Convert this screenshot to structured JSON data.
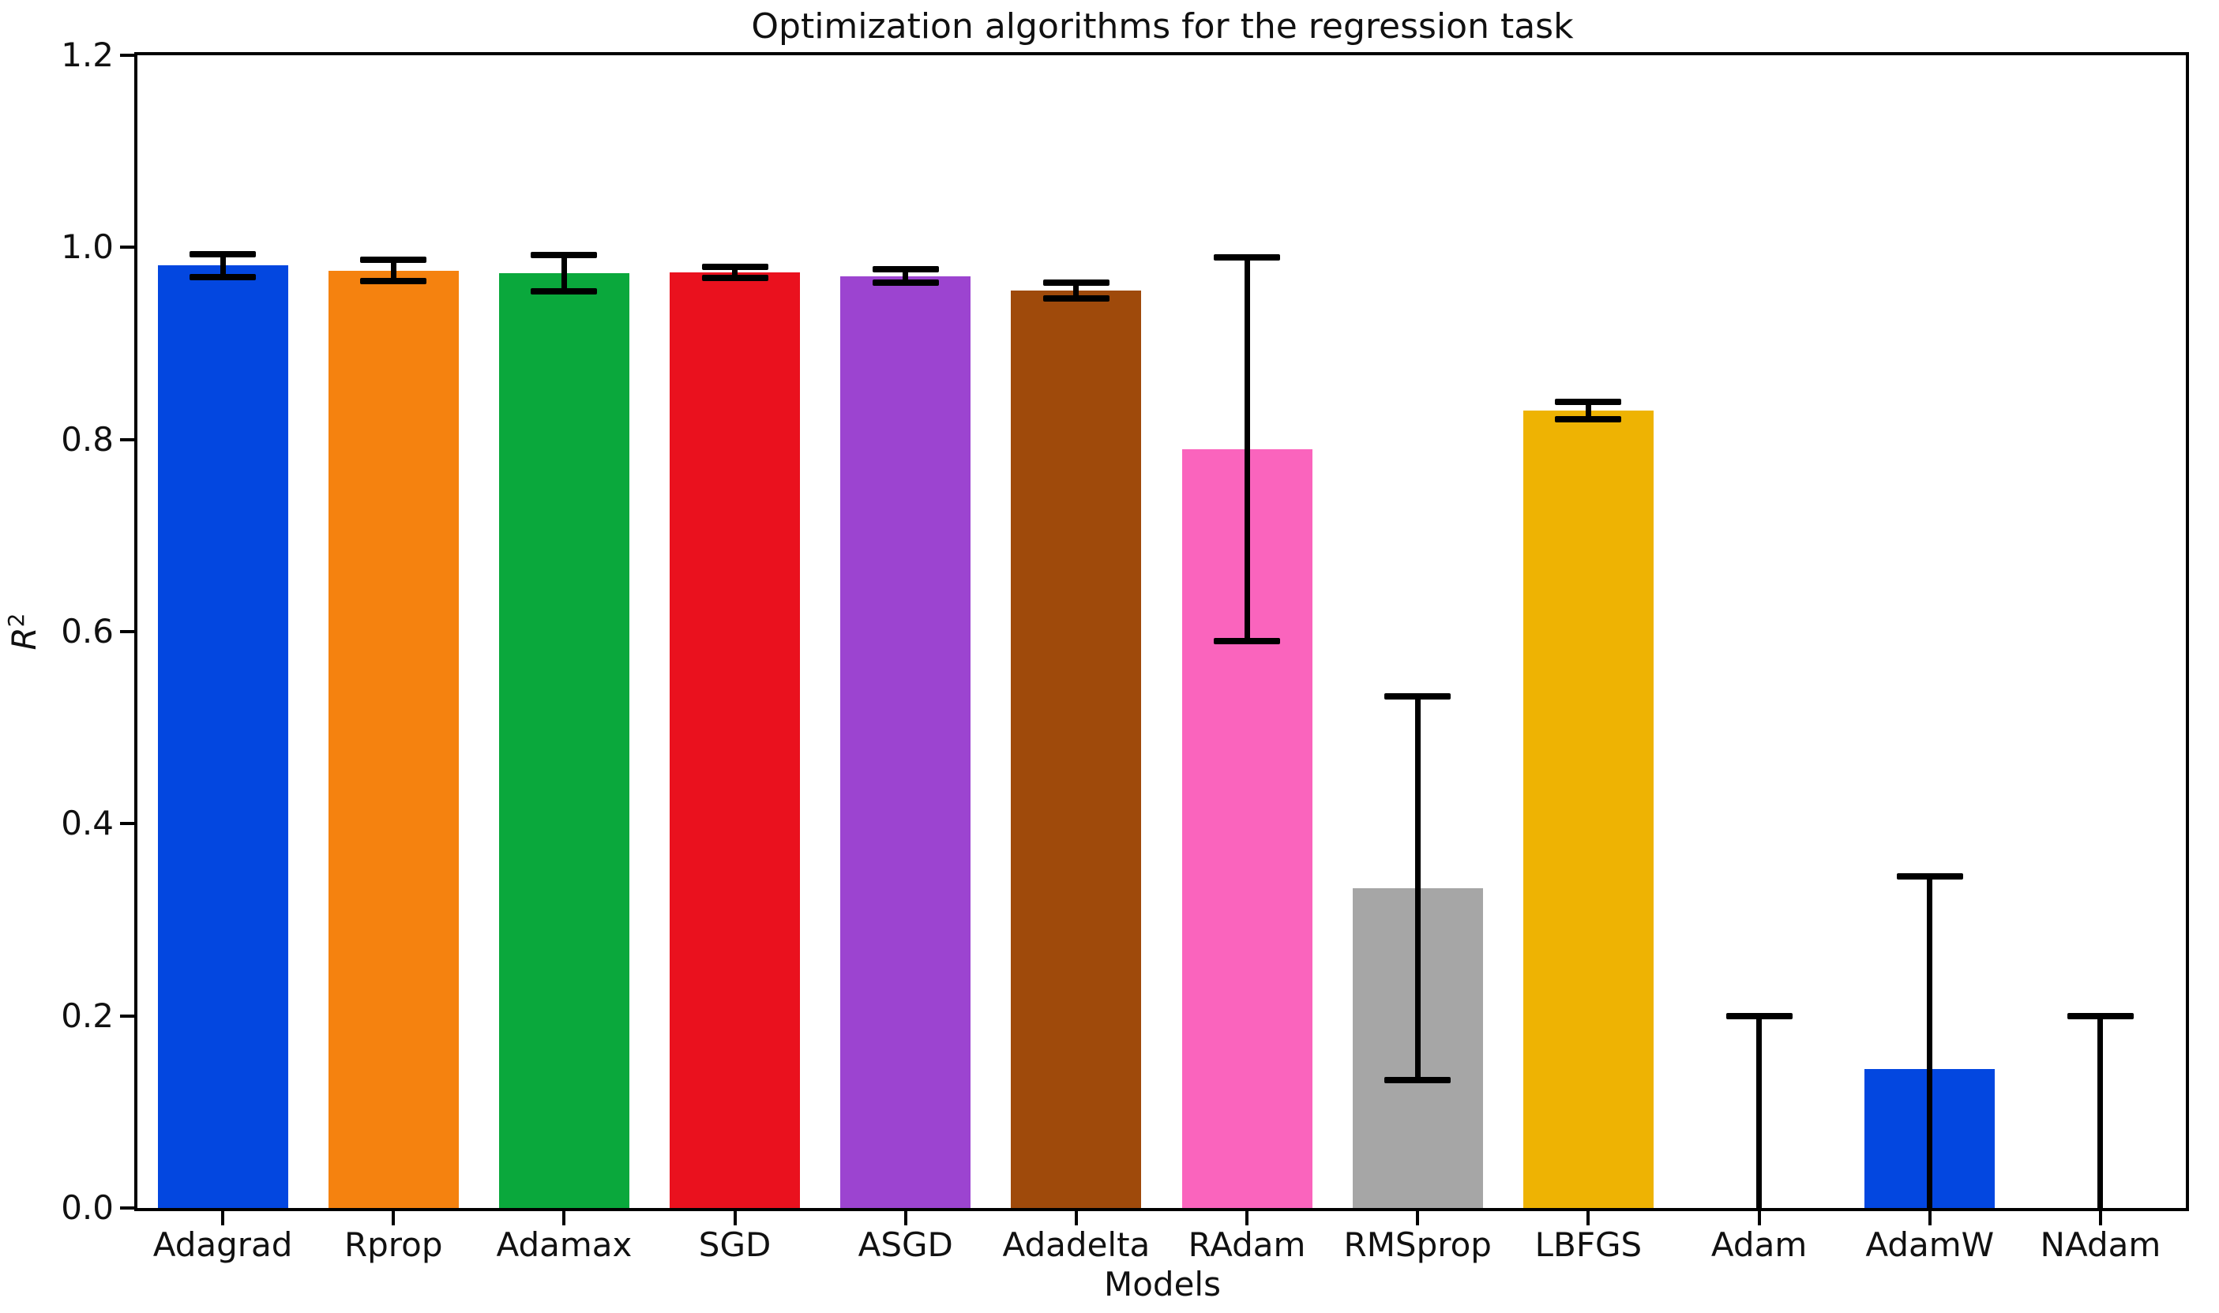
{
  "figure": {
    "title": "Optimization algorithms for the regression task",
    "xlabel": "Models",
    "ylabel_base": "R",
    "ylabel_sup": "2",
    "background_color": "#ffffff",
    "spine_color": "#000000",
    "text_color": "#111111"
  },
  "chart_data": {
    "type": "bar",
    "title": "Optimization algorithms for the regression task",
    "xlabel": "Models",
    "ylabel": "R^2",
    "categories": [
      "Adagrad",
      "Rprop",
      "Adamax",
      "SGD",
      "ASGD",
      "Adadelta",
      "RAdam",
      "RMSprop",
      "LBFGS",
      "Adam",
      "AdamW",
      "NAdam"
    ],
    "values": [
      0.981,
      0.976,
      0.973,
      0.974,
      0.97,
      0.955,
      0.79,
      0.333,
      0.83,
      0.0,
      0.145,
      0.0
    ],
    "errors": [
      0.012,
      0.011,
      0.019,
      0.006,
      0.007,
      0.008,
      0.2,
      0.2,
      0.009,
      0.2,
      0.2,
      0.2
    ],
    "bar_colors": [
      "#0347e0",
      "#f5820f",
      "#0aa83c",
      "#ea111e",
      "#9c44d0",
      "#9f4a0b",
      "#fa64bd",
      "#a6a6a6",
      "#eeb303",
      "#00d7ff",
      "#0347e0",
      "#f5820f"
    ],
    "error_color": "#000000",
    "ylim": [
      0.0,
      1.2
    ],
    "ytick_labels": [
      "0.0",
      "0.2",
      "0.4",
      "0.6",
      "0.8",
      "1.0",
      "1.2"
    ],
    "grid": false,
    "legend": null
  }
}
